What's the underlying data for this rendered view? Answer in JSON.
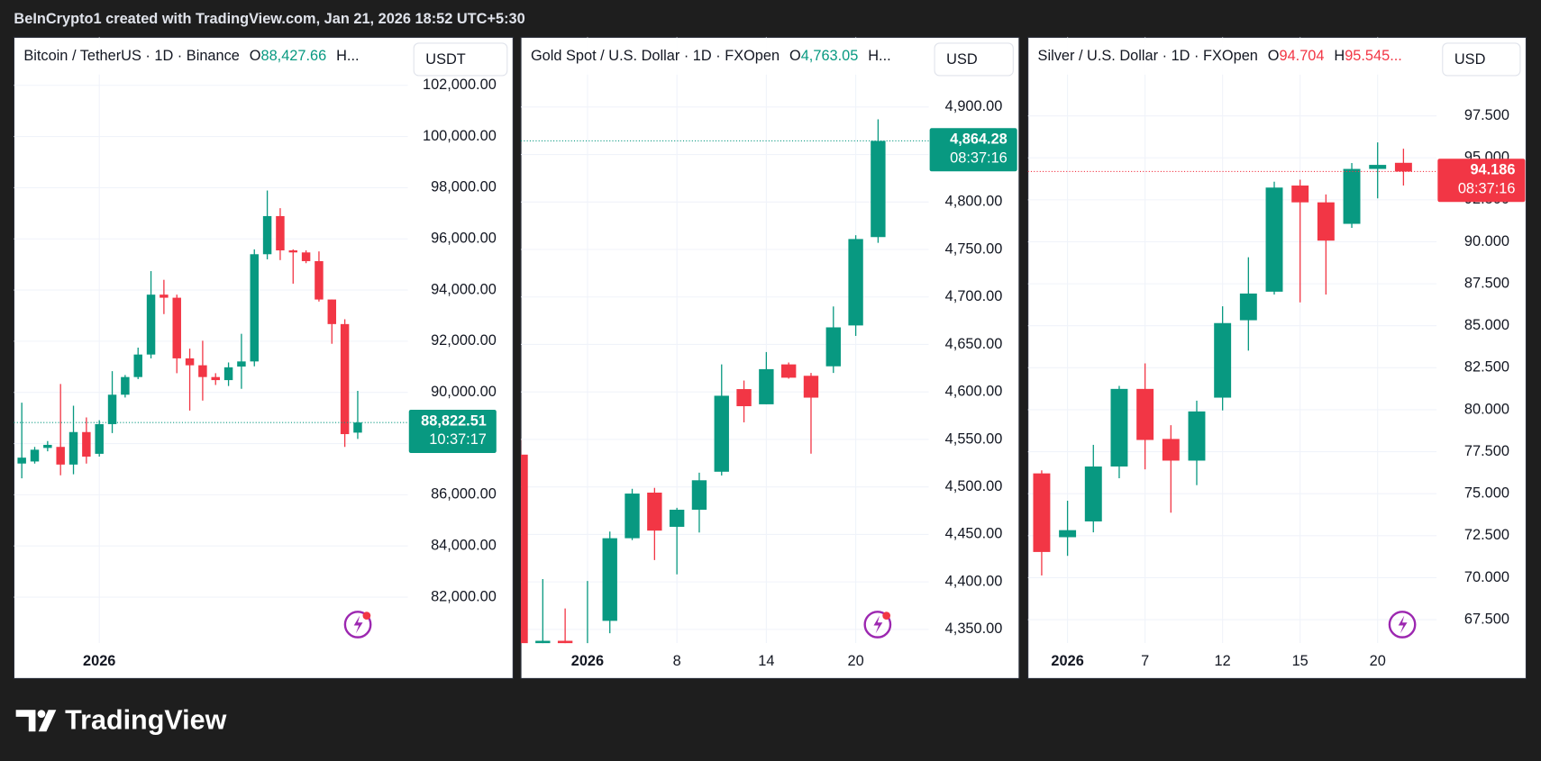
{
  "credit": "BeInCrypto1 created with TradingView.com, Jan 21, 2026 18:52 UTC+5:30",
  "brand": "TradingView",
  "chart_data": [
    {
      "type": "candlestick",
      "title": "Bitcoin / TetherUS · 1D · Binance",
      "currency": "USDT",
      "legend": [
        {
          "text": "O",
          "color": "#131722"
        },
        {
          "text": "88,427.66",
          "color": "#089981"
        },
        {
          "text": "H...",
          "color": "#131722"
        }
      ],
      "up_color": "#089981",
      "down_color": "#f23645",
      "categories": [
        null,
        null,
        null,
        null,
        null,
        null,
        "2026",
        null,
        null,
        null,
        null,
        null,
        null,
        null,
        null,
        null,
        null,
        null,
        null,
        null,
        null,
        null,
        null,
        null,
        null,
        null,
        null
      ],
      "open": [
        87220,
        87300,
        87830,
        87870,
        87180,
        88450,
        87600,
        88760,
        89910,
        90600,
        91480,
        93820,
        93700,
        91330,
        91060,
        90600,
        90480,
        91010,
        91210,
        95400,
        96890,
        95550,
        95470,
        95130,
        93630,
        92670,
        88427.66
      ],
      "high": [
        89600,
        87870,
        88100,
        90330,
        89480,
        89020,
        88910,
        90830,
        90680,
        91750,
        94740,
        94400,
        93820,
        91710,
        92020,
        90750,
        91170,
        92290,
        95590,
        97890,
        97200,
        95590,
        95550,
        95510,
        93630,
        92860,
        90060
      ],
      "low": [
        86640,
        87220,
        87700,
        86760,
        86800,
        87220,
        87490,
        88410,
        89800,
        90520,
        91330,
        93060,
        90750,
        89290,
        89680,
        90290,
        90250,
        90140,
        91020,
        95200,
        95170,
        94250,
        95050,
        93550,
        91900,
        87870,
        88180
      ],
      "close": [
        87450,
        87760,
        87950,
        87180,
        88450,
        87490,
        88760,
        89910,
        90600,
        91480,
        93820,
        93700,
        91330,
        91060,
        90600,
        90480,
        90980,
        91210,
        95400,
        96890,
        95550,
        95470,
        95130,
        93630,
        92670,
        88370,
        88822.51
      ],
      "last_label": "88,822.51",
      "countdown": "10:37:17",
      "ylim": [
        80200,
        103800
      ],
      "yticks": [
        {
          "value": 82000,
          "label": "82,000.00"
        },
        {
          "value": 84000,
          "label": "84,000.00"
        },
        {
          "value": 86000,
          "label": "86,000.00"
        },
        {
          "value": 88000,
          "label": "88,000.00"
        },
        {
          "value": 90000,
          "label": "90,000.00"
        },
        {
          "value": 92000,
          "label": "92,000.00"
        },
        {
          "value": 94000,
          "label": "94,000.00"
        },
        {
          "value": 96000,
          "label": "96,000.00"
        },
        {
          "value": 98000,
          "label": "98,000.00"
        },
        {
          "value": 100000,
          "label": "100,000.00"
        },
        {
          "value": 102000,
          "label": "102,000.00"
        }
      ],
      "grid": true
    },
    {
      "type": "candlestick",
      "title": "Gold Spot / U.S. Dollar · 1D · FXOpen",
      "currency": "USD",
      "legend": [
        {
          "text": "O",
          "color": "#131722"
        },
        {
          "text": "4,763.05",
          "color": "#089981"
        },
        {
          "text": "H...",
          "color": "#131722"
        }
      ],
      "up_color": "#089981",
      "down_color": "#f23645",
      "categories": [
        null,
        null,
        null,
        "2026",
        null,
        null,
        null,
        "8",
        null,
        null,
        null,
        "14",
        null,
        null,
        null,
        "20",
        null
      ],
      "open": [
        4534,
        4332,
        4338,
        4320,
        4359,
        4446,
        4494,
        4458,
        4476,
        4516,
        4603,
        4587,
        4629,
        4617,
        4627,
        4670,
        4763.05
      ],
      "high": [
        4550,
        4403,
        4372,
        4401,
        4453,
        4498,
        4499,
        4478,
        4515,
        4629,
        4612,
        4642,
        4631,
        4620,
        4690,
        4765,
        4887
      ],
      "low": [
        4310,
        4320,
        4300,
        4310,
        4346,
        4444,
        4423,
        4408,
        4452,
        4512,
        4568,
        4587,
        4614,
        4535,
        4620,
        4659,
        4757
      ],
      "close": [
        4330,
        4338,
        4320,
        4330,
        4446,
        4493,
        4454,
        4476,
        4507,
        4596,
        4585,
        4624,
        4615,
        4594,
        4668,
        4761,
        4864.28
      ],
      "last_label": "4,864.28",
      "countdown": "08:37:16",
      "ylim": [
        4335.5,
        4971.3
      ],
      "yticks": [
        {
          "value": 4350,
          "label": "4,350.00"
        },
        {
          "value": 4400,
          "label": "4,400.00"
        },
        {
          "value": 4450,
          "label": "4,450.00"
        },
        {
          "value": 4500,
          "label": "4,500.00"
        },
        {
          "value": 4550,
          "label": "4,550.00"
        },
        {
          "value": 4600,
          "label": "4,600.00"
        },
        {
          "value": 4650,
          "label": "4,650.00"
        },
        {
          "value": 4700,
          "label": "4,700.00"
        },
        {
          "value": 4750,
          "label": "4,750.00"
        },
        {
          "value": 4800,
          "label": "4,800.00"
        },
        {
          "value": 4850,
          "label": "4,850.00"
        },
        {
          "value": 4900,
          "label": "4,900.00"
        }
      ],
      "grid": true
    },
    {
      "type": "candlestick",
      "title": "Silver / U.S. Dollar · 1D · FXOpen",
      "currency": "USD",
      "legend": [
        {
          "text": "O",
          "color": "#131722"
        },
        {
          "text": "94.704",
          "color": "#f23645"
        },
        {
          "text": "H",
          "color": "#131722"
        },
        {
          "text": "95.545...",
          "color": "#f23645"
        }
      ],
      "up_color": "#089981",
      "down_color": "#f23645",
      "categories": [
        null,
        "2026",
        null,
        null,
        "7",
        null,
        null,
        "12",
        null,
        null,
        "15",
        null,
        null,
        "20",
        null
      ],
      "open": [
        76.21,
        72.41,
        73.35,
        76.62,
        81.24,
        78.26,
        76.97,
        80.72,
        85.33,
        87.03,
        93.35,
        92.35,
        91.07,
        94.34,
        94.704
      ],
      "high": [
        76.39,
        74.58,
        77.91,
        81.42,
        82.76,
        79.08,
        80.54,
        86.16,
        89.08,
        93.58,
        93.7,
        92.82,
        94.69,
        95.92,
        95.545
      ],
      "low": [
        70.13,
        71.3,
        72.7,
        75.92,
        76.45,
        73.87,
        75.51,
        79.96,
        83.52,
        86.86,
        86.39,
        86.86,
        90.83,
        92.59,
        93.35
      ],
      "close": [
        71.53,
        72.83,
        76.62,
        81.24,
        78.2,
        76.97,
        79.9,
        85.16,
        86.92,
        93.23,
        92.35,
        90.07,
        94.34,
        94.58,
        94.186
      ],
      "last_label": "94.186",
      "countdown": "08:37:16",
      "ylim": [
        66.1,
        102.06
      ],
      "yticks": [
        {
          "value": 67.5,
          "label": "67.500"
        },
        {
          "value": 70,
          "label": "70.000"
        },
        {
          "value": 72.5,
          "label": "72.500"
        },
        {
          "value": 75,
          "label": "75.000"
        },
        {
          "value": 77.5,
          "label": "77.500"
        },
        {
          "value": 80,
          "label": "80.000"
        },
        {
          "value": 82.5,
          "label": "82.500"
        },
        {
          "value": 85,
          "label": "85.000"
        },
        {
          "value": 87.5,
          "label": "87.500"
        },
        {
          "value": 90,
          "label": "90.000"
        },
        {
          "value": 92.5,
          "label": "92.500"
        },
        {
          "value": 95,
          "label": "95.000"
        },
        {
          "value": 97.5,
          "label": "97.500"
        }
      ],
      "grid": true
    }
  ]
}
